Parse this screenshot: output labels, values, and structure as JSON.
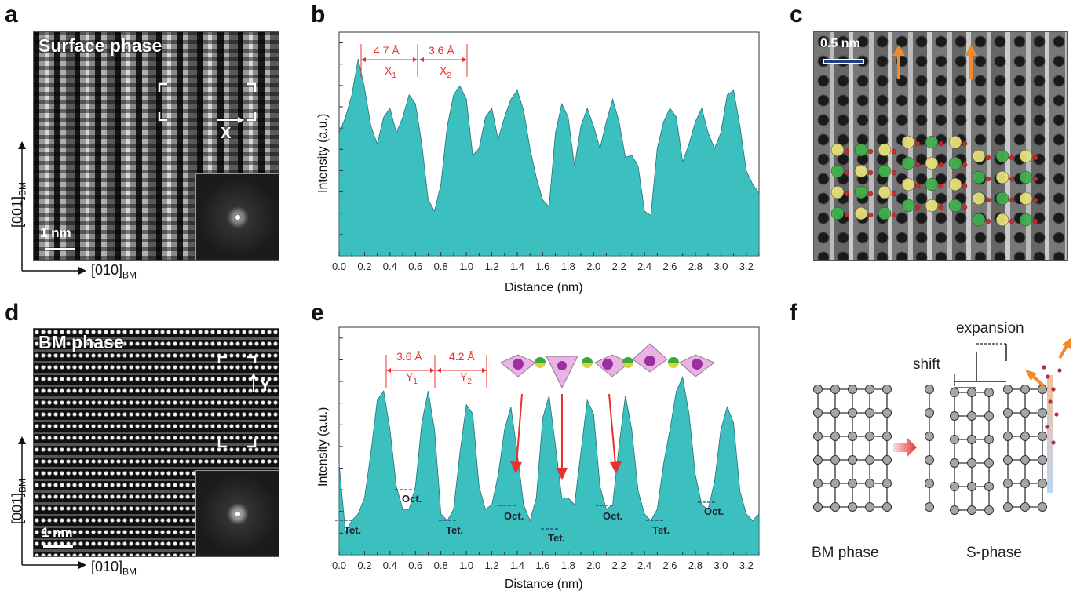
{
  "colors": {
    "fill": "#3cbfbf",
    "annot": "#e8302f",
    "arrow": "#f08a2a"
  },
  "panel_a": {
    "label": "a",
    "title": "Surface phase",
    "scale": "1 nm",
    "marker": "X",
    "axis_v": "[001]",
    "axis_v_sub": "BM",
    "axis_h": "[010]",
    "axis_h_sub": "BM"
  },
  "panel_b": {
    "label": "b",
    "ylabel": "Intensity (a.u.)",
    "xlabel": "Distance (nm)",
    "ann": [
      {
        "val": "4.7 Å",
        "name": "X",
        "sub": "1"
      },
      {
        "val": "3.6 Å",
        "name": "X",
        "sub": "2"
      }
    ]
  },
  "panel_c": {
    "label": "c",
    "scale": "0.5 nm"
  },
  "panel_d": {
    "label": "d",
    "title": "BM phase",
    "scale": "1 nm",
    "marker": "Y",
    "axis_v": "[001]",
    "axis_v_sub": "BM",
    "axis_h": "[010]",
    "axis_h_sub": "BM"
  },
  "panel_e": {
    "label": "e",
    "ylabel": "Intensity (a.u.)",
    "xlabel": "Distance (nm)",
    "ann": [
      {
        "val": "3.6 Å",
        "name": "Y",
        "sub": "1"
      },
      {
        "val": "4.2 Å",
        "name": "Y",
        "sub": "2"
      }
    ],
    "sites": [
      "Tet.",
      "Oct.",
      "Tet.",
      "Oct.",
      "Tet.",
      "Oct.",
      "Tet.",
      "Oct."
    ]
  },
  "panel_f": {
    "label": "f",
    "expansion": "expansion",
    "shift": "shift",
    "bm_label": "BM phase",
    "s_label": "S-phase"
  },
  "chart_data": [
    {
      "type": "area",
      "panel": "b",
      "title": "",
      "xlabel": "Distance (nm)",
      "ylabel": "Intensity (a.u.)",
      "xlim": [
        0,
        3.3
      ],
      "x_ticks": [
        "0.0",
        "0.2",
        "0.4",
        "0.6",
        "0.8",
        "1.0",
        "1.2",
        "1.4",
        "1.6",
        "1.8",
        "2.0",
        "2.2",
        "2.4",
        "2.6",
        "2.8",
        "3.0",
        "3.2"
      ],
      "x": [
        0,
        0.05,
        0.1,
        0.15,
        0.2,
        0.25,
        0.3,
        0.35,
        0.4,
        0.45,
        0.5,
        0.55,
        0.6,
        0.65,
        0.7,
        0.75,
        0.8,
        0.85,
        0.9,
        0.95,
        1.0,
        1.05,
        1.1,
        1.15,
        1.2,
        1.25,
        1.3,
        1.35,
        1.4,
        1.45,
        1.5,
        1.55,
        1.6,
        1.65,
        1.7,
        1.75,
        1.8,
        1.85,
        1.9,
        1.95,
        2.0,
        2.05,
        2.1,
        2.15,
        2.2,
        2.25,
        2.3,
        2.35,
        2.4,
        2.45,
        2.5,
        2.55,
        2.6,
        2.65,
        2.7,
        2.75,
        2.8,
        2.85,
        2.9,
        2.95,
        3.0,
        3.05,
        3.1,
        3.15,
        3.2,
        3.25,
        3.3
      ],
      "y": [
        0.55,
        0.62,
        0.72,
        0.88,
        0.75,
        0.58,
        0.5,
        0.62,
        0.66,
        0.55,
        0.62,
        0.72,
        0.68,
        0.5,
        0.25,
        0.2,
        0.32,
        0.58,
        0.72,
        0.76,
        0.7,
        0.45,
        0.48,
        0.62,
        0.66,
        0.52,
        0.62,
        0.7,
        0.74,
        0.65,
        0.48,
        0.35,
        0.25,
        0.22,
        0.55,
        0.68,
        0.62,
        0.4,
        0.58,
        0.66,
        0.58,
        0.48,
        0.6,
        0.7,
        0.6,
        0.44,
        0.45,
        0.4,
        0.2,
        0.18,
        0.48,
        0.6,
        0.66,
        0.62,
        0.42,
        0.5,
        0.6,
        0.66,
        0.55,
        0.48,
        0.55,
        0.72,
        0.74,
        0.58,
        0.38,
        0.32,
        0.28
      ]
    },
    {
      "type": "area",
      "panel": "e",
      "title": "",
      "xlabel": "Distance (nm)",
      "ylabel": "Intensity (a.u.)",
      "xlim": [
        0,
        3.3
      ],
      "x_ticks": [
        "0.0",
        "0.2",
        "0.4",
        "0.6",
        "0.8",
        "1.0",
        "1.2",
        "1.4",
        "1.6",
        "1.8",
        "2.0",
        "2.2",
        "2.4",
        "2.6",
        "2.8",
        "3.0",
        "3.2"
      ],
      "x": [
        0,
        0.05,
        0.1,
        0.15,
        0.2,
        0.25,
        0.3,
        0.35,
        0.4,
        0.45,
        0.5,
        0.55,
        0.6,
        0.65,
        0.7,
        0.75,
        0.8,
        0.85,
        0.9,
        0.95,
        1.0,
        1.05,
        1.1,
        1.15,
        1.2,
        1.25,
        1.3,
        1.35,
        1.4,
        1.45,
        1.5,
        1.55,
        1.6,
        1.65,
        1.7,
        1.75,
        1.8,
        1.85,
        1.9,
        1.95,
        2.0,
        2.05,
        2.1,
        2.15,
        2.2,
        2.25,
        2.3,
        2.35,
        2.4,
        2.45,
        2.5,
        2.55,
        2.6,
        2.65,
        2.7,
        2.75,
        2.8,
        2.85,
        2.9,
        2.95,
        3.0,
        3.05,
        3.1,
        3.15,
        3.2,
        3.25,
        3.3
      ],
      "y": [
        0.4,
        0.1,
        0.15,
        0.18,
        0.25,
        0.45,
        0.68,
        0.72,
        0.55,
        0.3,
        0.2,
        0.2,
        0.3,
        0.58,
        0.72,
        0.55,
        0.18,
        0.15,
        0.2,
        0.45,
        0.66,
        0.62,
        0.3,
        0.2,
        0.22,
        0.35,
        0.55,
        0.65,
        0.45,
        0.22,
        0.15,
        0.25,
        0.6,
        0.7,
        0.48,
        0.25,
        0.25,
        0.22,
        0.45,
        0.68,
        0.62,
        0.3,
        0.2,
        0.22,
        0.48,
        0.7,
        0.55,
        0.28,
        0.18,
        0.15,
        0.2,
        0.4,
        0.55,
        0.72,
        0.78,
        0.62,
        0.35,
        0.22,
        0.2,
        0.32,
        0.55,
        0.65,
        0.58,
        0.28,
        0.18,
        0.15,
        0.18
      ]
    }
  ]
}
